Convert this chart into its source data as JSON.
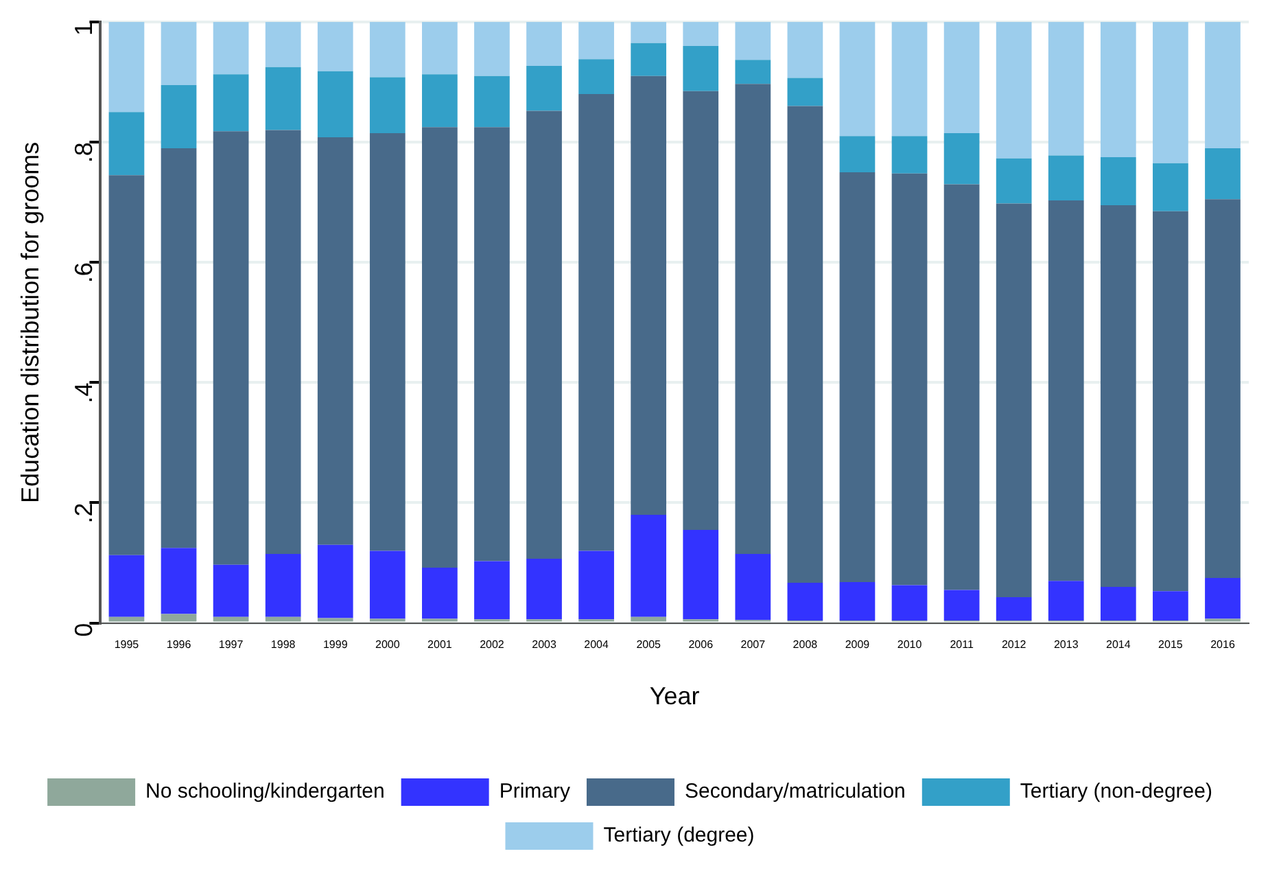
{
  "chart_data": {
    "type": "bar",
    "stacked": true,
    "xlabel": "Year",
    "ylabel": "Education distribution for grooms",
    "categories": [
      "1995",
      "1996",
      "1997",
      "1998",
      "1999",
      "2000",
      "2001",
      "2002",
      "2003",
      "2004",
      "2005",
      "2006",
      "2007",
      "2008",
      "2009",
      "2010",
      "2011",
      "2012",
      "2013",
      "2014",
      "2015",
      "2016"
    ],
    "ylim": [
      0,
      1
    ],
    "yticks": [
      0,
      {
        "value": 0.2,
        "label": ".2"
      },
      {
        "value": 0.4,
        "label": ".4"
      },
      {
        "value": 0.6,
        "label": ".6"
      },
      {
        "value": 0.8,
        "label": ".8"
      },
      1
    ],
    "grid": "y",
    "legend": "bottom",
    "series": [
      {
        "name": "No schooling/kindergarten",
        "color": "#8fa89b",
        "values": [
          0.01,
          0.015,
          0.01,
          0.01,
          0.008,
          0.007,
          0.007,
          0.006,
          0.006,
          0.006,
          0.01,
          0.006,
          0.005,
          0.004,
          0.004,
          0.004,
          0.004,
          0.004,
          0.004,
          0.004,
          0.004,
          0.007
        ]
      },
      {
        "name": "Primary",
        "color": "#3333ff",
        "values": [
          0.103,
          0.11,
          0.087,
          0.105,
          0.122,
          0.113,
          0.085,
          0.097,
          0.101,
          0.114,
          0.17,
          0.149,
          0.11,
          0.063,
          0.064,
          0.059,
          0.051,
          0.039,
          0.066,
          0.056,
          0.049,
          0.068
        ]
      },
      {
        "name": "Secondary/matriculation",
        "color": "#486a8a",
        "values": [
          0.632,
          0.665,
          0.721,
          0.705,
          0.678,
          0.695,
          0.733,
          0.722,
          0.745,
          0.76,
          0.73,
          0.73,
          0.782,
          0.793,
          0.682,
          0.685,
          0.675,
          0.655,
          0.633,
          0.635,
          0.632,
          0.63
        ]
      },
      {
        "name": "Tertiary (non-degree)",
        "color": "#33a0c8",
        "values": [
          0.105,
          0.105,
          0.095,
          0.105,
          0.11,
          0.093,
          0.088,
          0.085,
          0.075,
          0.058,
          0.055,
          0.075,
          0.04,
          0.047,
          0.06,
          0.062,
          0.085,
          0.075,
          0.075,
          0.08,
          0.08,
          0.085
        ]
      },
      {
        "name": "Tertiary (degree)",
        "color": "#9ccdec",
        "values": [
          0.15,
          0.105,
          0.087,
          0.075,
          0.082,
          0.092,
          0.087,
          0.09,
          0.073,
          0.062,
          0.035,
          0.04,
          0.063,
          0.093,
          0.19,
          0.19,
          0.185,
          0.227,
          0.222,
          0.225,
          0.235,
          0.21
        ]
      }
    ]
  }
}
